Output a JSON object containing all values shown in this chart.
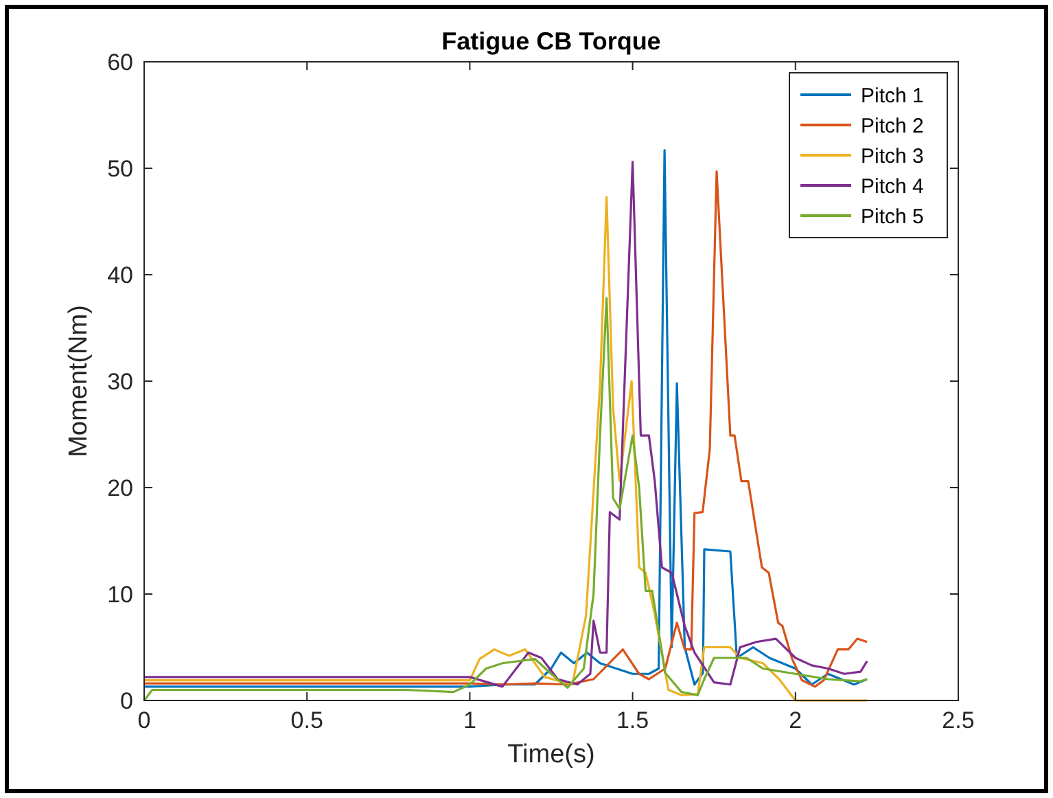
{
  "chart_data": {
    "type": "line",
    "title": "Fatigue CB Torque",
    "xlabel": "Time(s)",
    "ylabel": "Moment(Nm)",
    "xlim": [
      0,
      2.5
    ],
    "ylim": [
      0,
      60
    ],
    "xticks": [
      0,
      0.5,
      1,
      1.5,
      2,
      2.5
    ],
    "yticks": [
      0,
      10,
      20,
      30,
      40,
      50,
      60
    ],
    "grid": false,
    "legend": "top right",
    "line_style": "solid",
    "marker": "none",
    "series": [
      {
        "name": "Pitch 1",
        "color": "#0072bd",
        "x": [
          0,
          0.2,
          0.4,
          0.6,
          0.8,
          1.0,
          1.1,
          1.2,
          1.25,
          1.28,
          1.32,
          1.36,
          1.4,
          1.45,
          1.5,
          1.55,
          1.58,
          1.598,
          1.62,
          1.636,
          1.66,
          1.69,
          1.716,
          1.72,
          1.8,
          1.82,
          1.87,
          1.92,
          2.0,
          2.05,
          2.1,
          2.18,
          2.22
        ],
        "values": [
          1.3,
          1.3,
          1.3,
          1.3,
          1.3,
          1.3,
          1.5,
          1.5,
          3,
          4.5,
          3.5,
          4.5,
          3.5,
          3,
          2.5,
          2.5,
          3,
          51.7,
          5,
          29.8,
          5,
          1.5,
          2.6,
          14.2,
          14,
          4,
          5,
          4,
          3,
          1.5,
          2.5,
          1.5,
          2
        ]
      },
      {
        "name": "Pitch 2",
        "color": "#d95319",
        "x": [
          0,
          0.2,
          0.4,
          0.6,
          0.8,
          1.0,
          1.1,
          1.2,
          1.3,
          1.38,
          1.47,
          1.52,
          1.55,
          1.6,
          1.636,
          1.66,
          1.68,
          1.69,
          1.715,
          1.737,
          1.758,
          1.8,
          1.813,
          1.834,
          1.855,
          1.897,
          1.918,
          1.947,
          1.96,
          1.99,
          2.02,
          2.06,
          2.087,
          2.13,
          2.163,
          2.19,
          2.22
        ],
        "values": [
          1.6,
          1.6,
          1.6,
          1.6,
          1.6,
          1.6,
          1.5,
          1.6,
          1.5,
          2,
          4.8,
          2.5,
          2,
          3,
          7.3,
          4.8,
          4.8,
          17.6,
          17.7,
          23.6,
          49.7,
          24.9,
          24.9,
          20.6,
          20.6,
          12.5,
          12,
          7.3,
          7,
          3.9,
          1.9,
          1.3,
          1.9,
          4.8,
          4.8,
          5.8,
          5.5
        ]
      },
      {
        "name": "Pitch 3",
        "color": "#edb120",
        "x": [
          0,
          0.2,
          0.4,
          0.6,
          0.8,
          1.0,
          1.03,
          1.075,
          1.12,
          1.17,
          1.23,
          1.315,
          1.357,
          1.4,
          1.42,
          1.44,
          1.46,
          1.497,
          1.52,
          1.54,
          1.568,
          1.61,
          1.65,
          1.7,
          1.72,
          1.8,
          1.83,
          1.9,
          1.95,
          2.0,
          2.1,
          2.22
        ],
        "values": [
          1.9,
          1.9,
          1.9,
          1.9,
          1.9,
          1.9,
          3.9,
          4.8,
          4.2,
          4.8,
          2.2,
          1.5,
          8,
          29.7,
          47.3,
          27.5,
          20.6,
          30,
          12.5,
          12,
          8.1,
          1,
          0.5,
          0.6,
          5,
          5,
          4,
          3.5,
          2,
          0,
          0,
          0
        ]
      },
      {
        "name": "Pitch 4",
        "color": "#7e2f8e",
        "x": [
          0,
          0.2,
          0.4,
          0.6,
          0.8,
          1.0,
          1.1,
          1.18,
          1.22,
          1.27,
          1.33,
          1.37,
          1.38,
          1.4,
          1.42,
          1.43,
          1.46,
          1.5,
          1.525,
          1.55,
          1.568,
          1.59,
          1.62,
          1.66,
          1.69,
          1.75,
          1.8,
          1.83,
          1.88,
          1.94,
          2.0,
          2.05,
          2.1,
          2.15,
          2.2,
          2.22
        ],
        "values": [
          2.2,
          2.2,
          2.2,
          2.2,
          2.2,
          2.2,
          1.3,
          4.5,
          4,
          2,
          1.5,
          2.5,
          7.5,
          4.5,
          4.5,
          17.7,
          17,
          50.6,
          24.9,
          24.9,
          20.6,
          12.5,
          12,
          7,
          4.5,
          1.7,
          1.5,
          5,
          5.5,
          5.8,
          4,
          3.3,
          3,
          2.5,
          2.7,
          3.7
        ]
      },
      {
        "name": "Pitch 5",
        "color": "#77ac30",
        "x": [
          0,
          0.025,
          0.2,
          0.4,
          0.6,
          0.8,
          0.95,
          1.0,
          1.05,
          1.1,
          1.2,
          1.25,
          1.3,
          1.35,
          1.38,
          1.4,
          1.42,
          1.44,
          1.46,
          1.5,
          1.52,
          1.54,
          1.56,
          1.6,
          1.65,
          1.7,
          1.72,
          1.75,
          1.85,
          1.9,
          2.0,
          2.1,
          2.2,
          2.22
        ],
        "values": [
          0,
          1,
          1,
          1,
          1,
          1,
          0.8,
          1.5,
          3,
          3.5,
          3.9,
          2.5,
          1.2,
          3,
          10,
          25,
          37.8,
          19,
          18,
          24.9,
          20,
          10.3,
          10.3,
          2.6,
          0.8,
          0.5,
          2,
          4,
          4,
          3,
          2.5,
          2,
          1.8,
          2
        ]
      }
    ]
  }
}
